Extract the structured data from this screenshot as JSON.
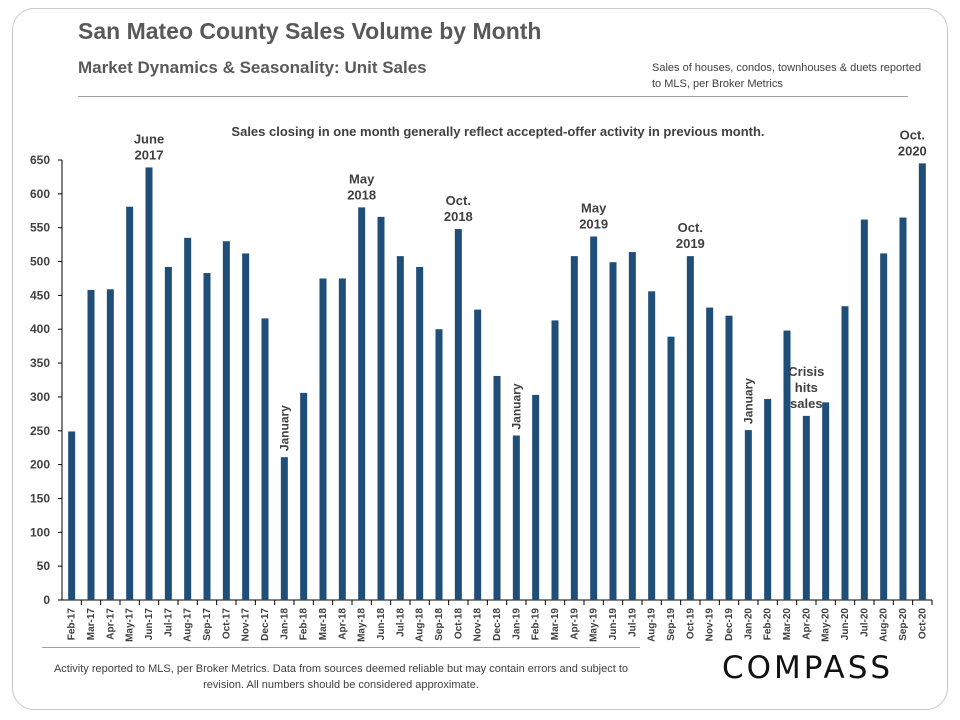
{
  "title": "San Mateo County Sales Volume by Month",
  "subtitle": "Market Dynamics  & Seasonality:  Unit Sales",
  "source_note": "Sales of houses, condos, townhouses & duets reported to MLS, per Broker Metrics",
  "chart_subtitle": "Sales closing in one month generally reflect accepted-offer activity in previous month.",
  "footer": "Activity reported to MLS, per Broker Metrics. Data from sources deemed reliable but may contain errors and subject to revision. All numbers should be considered approximate.",
  "logo": "COMPASS",
  "colors": {
    "bar": "#1f4e79",
    "text": "#404040",
    "axis": "#000000"
  },
  "chart_data": {
    "type": "bar",
    "categories": [
      "Feb-17",
      "Mar-17",
      "Apr-17",
      "May-17",
      "Jun-17",
      "Jul-17",
      "Aug-17",
      "Sep-17",
      "Oct-17",
      "Nov-17",
      "Dec-17",
      "Jan-18",
      "Feb-18",
      "Mar-18",
      "Apr-18",
      "May-18",
      "Jun-18",
      "Jul-18",
      "Aug-18",
      "Sep-18",
      "Oct-18",
      "Nov-18",
      "Dec-18",
      "Jan-19",
      "Feb-19",
      "Mar-19",
      "Apr-19",
      "May-19",
      "Jun-19",
      "Jul-19",
      "Aug-19",
      "Sep-19",
      "Oct-19",
      "Nov-19",
      "Dec-19",
      "Jan-20",
      "Feb-20",
      "Mar-20",
      "Apr-20",
      "May-20",
      "Jun-20",
      "Jul-20",
      "Aug-20",
      "Sep-20",
      "Oct-20"
    ],
    "values": [
      249,
      458,
      459,
      581,
      639,
      492,
      535,
      483,
      530,
      512,
      416,
      211,
      306,
      475,
      475,
      580,
      566,
      508,
      492,
      400,
      548,
      429,
      331,
      243,
      303,
      413,
      508,
      537,
      499,
      514,
      456,
      389,
      508,
      432,
      420,
      251,
      297,
      398,
      272,
      292,
      434,
      562,
      512,
      565,
      645
    ],
    "ylim": [
      0,
      650
    ],
    "yticks": [
      0,
      50,
      100,
      150,
      200,
      250,
      300,
      350,
      400,
      450,
      500,
      550,
      600,
      650
    ],
    "grid": false,
    "annotations": [
      {
        "index": 4,
        "lines": [
          "June",
          "2017"
        ],
        "vertical": false
      },
      {
        "index": 11,
        "lines": [
          "January"
        ],
        "vertical": true
      },
      {
        "index": 15,
        "lines": [
          "May",
          "2018"
        ],
        "vertical": false
      },
      {
        "index": 20,
        "lines": [
          "Oct.",
          "2018"
        ],
        "vertical": false
      },
      {
        "index": 23,
        "lines": [
          "January"
        ],
        "vertical": true
      },
      {
        "index": 27,
        "lines": [
          "May",
          "2019"
        ],
        "vertical": false
      },
      {
        "index": 32,
        "lines": [
          "Oct.",
          "2019"
        ],
        "vertical": false
      },
      {
        "index": 35,
        "lines": [
          "January"
        ],
        "vertical": true
      },
      {
        "index": 38,
        "lines": [
          "Crisis",
          "hits",
          "sales"
        ],
        "vertical": false
      },
      {
        "index": 44,
        "lines": [
          "Oct.",
          "2020"
        ],
        "vertical": false
      }
    ]
  }
}
